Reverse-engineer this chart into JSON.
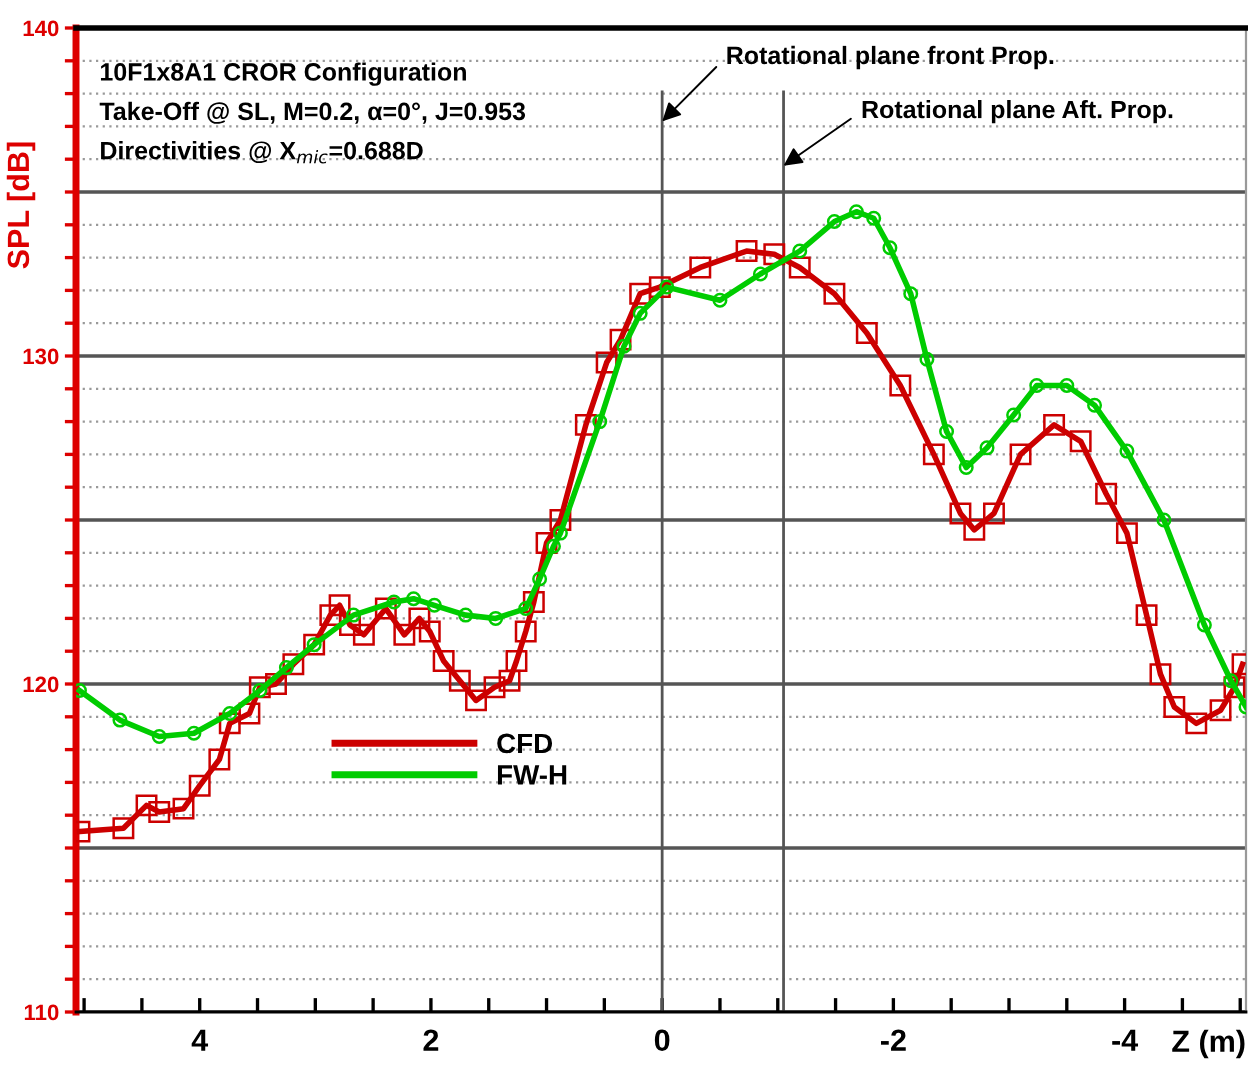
{
  "chart_data": {
    "type": "line",
    "title": "10F1x8A1 CROR Configuration",
    "subtitle": "Take-Off @ SL, M=0.2, α=0°, J=0.953",
    "annotations": [
      "Directivities @ X$_{mic}$=0.688D"
    ],
    "xlabel": "Z (m)",
    "ylabel": "SPL [dB]",
    "series": [
      {
        "name": "CFD",
        "color": "#cc0000",
        "marker": "square",
        "x": [
          5.04,
          4.66,
          4.46,
          4.35,
          4.14,
          4.0,
          3.83,
          3.74,
          3.57,
          3.48,
          3.34,
          3.19,
          3.01,
          2.87,
          2.79,
          2.7,
          2.58,
          2.39,
          2.23,
          2.1,
          2.01,
          1.89,
          1.75,
          1.61,
          1.45,
          1.32,
          1.26,
          1.18,
          1.11,
          1.0,
          0.88,
          0.66,
          0.48,
          0.36,
          0.19,
          0.02,
          -0.33,
          -0.73,
          -0.97,
          -1.19,
          -1.49,
          -1.77,
          -2.06,
          -2.35,
          -2.58,
          -2.7,
          -2.87,
          -3.1,
          -3.39,
          -3.62,
          -3.84,
          -4.02,
          -4.19,
          -4.31,
          -4.43,
          -4.62,
          -4.83,
          -4.95,
          -5.02
        ],
        "values": [
          115.5,
          115.6,
          116.3,
          116.1,
          116.2,
          116.9,
          117.7,
          118.8,
          119.1,
          119.9,
          120.0,
          120.6,
          121.2,
          122.1,
          122.4,
          121.8,
          121.5,
          122.3,
          121.5,
          122.0,
          121.6,
          120.7,
          120.1,
          119.5,
          119.9,
          120.1,
          120.7,
          121.6,
          122.5,
          124.3,
          125.0,
          127.9,
          129.8,
          130.5,
          131.9,
          132.1,
          132.7,
          133.2,
          133.1,
          132.7,
          131.9,
          130.7,
          129.1,
          127.0,
          125.2,
          124.7,
          125.2,
          127.0,
          127.9,
          127.4,
          125.8,
          124.6,
          122.1,
          120.3,
          119.3,
          118.8,
          119.2,
          119.9,
          120.6
        ]
      },
      {
        "name": "FW-H",
        "color": "#00cc00",
        "marker": "circle",
        "x": [
          5.04,
          4.69,
          4.35,
          4.05,
          3.74,
          3.48,
          3.25,
          3.01,
          2.67,
          2.32,
          2.15,
          1.97,
          1.7,
          1.44,
          1.18,
          1.06,
          0.94,
          0.88,
          0.54,
          0.33,
          0.19,
          -0.04,
          -0.5,
          -0.85,
          -1.19,
          -1.49,
          -1.68,
          -1.83,
          -1.97,
          -2.15,
          -2.29,
          -2.46,
          -2.63,
          -2.81,
          -3.04,
          -3.24,
          -3.5,
          -3.74,
          -4.02,
          -4.34,
          -4.69,
          -4.92,
          -5.05
        ],
        "values": [
          119.8,
          118.9,
          118.4,
          118.5,
          119.1,
          119.8,
          120.5,
          121.2,
          122.1,
          122.5,
          122.6,
          122.4,
          122.1,
          122.0,
          122.3,
          123.2,
          124.2,
          124.6,
          128.0,
          130.3,
          131.3,
          132.1,
          131.7,
          132.5,
          133.2,
          134.1,
          134.4,
          134.2,
          133.3,
          131.9,
          129.9,
          127.7,
          126.6,
          127.2,
          128.2,
          129.1,
          129.1,
          128.5,
          127.1,
          125.0,
          121.8,
          120.1,
          119.3
        ]
      }
    ],
    "xlim": [
      5.07,
      -5.05
    ],
    "xticks": [
      {
        "value": 5.0,
        "label": null
      },
      {
        "value": 4.5,
        "label": null
      },
      4,
      {
        "value": 3.5,
        "label": null
      },
      {
        "value": 3.0,
        "label": null
      },
      {
        "value": 2.5,
        "label": null
      },
      2,
      {
        "value": 1.5,
        "label": null
      },
      {
        "value": 1.0,
        "label": null
      },
      {
        "value": 0.5,
        "label": null
      },
      0,
      {
        "value": -0.5,
        "label": null
      },
      {
        "value": -1.0,
        "label": null
      },
      {
        "value": -1.5,
        "label": null
      },
      -2,
      {
        "value": -2.5,
        "label": null
      },
      {
        "value": -3.0,
        "label": null
      },
      {
        "value": -3.5,
        "label": null
      },
      -4,
      {
        "value": -4.5,
        "label": null
      },
      {
        "value": -5.0,
        "label": null
      }
    ],
    "ylim": [
      110,
      140
    ],
    "yticks": [
      110,
      {
        "value": 111,
        "label": null
      },
      {
        "value": 112,
        "label": null
      },
      {
        "value": 113,
        "label": null
      },
      {
        "value": 114,
        "label": null
      },
      {
        "value": 115,
        "label": null
      },
      {
        "value": 116,
        "label": null
      },
      {
        "value": 117,
        "label": null
      },
      {
        "value": 118,
        "label": null
      },
      {
        "value": 119,
        "label": null
      },
      120,
      {
        "value": 121,
        "label": null
      },
      {
        "value": 122,
        "label": null
      },
      {
        "value": 123,
        "label": null
      },
      {
        "value": 124,
        "label": null
      },
      {
        "value": 125,
        "label": null
      },
      {
        "value": 126,
        "label": null
      },
      {
        "value": 127,
        "label": null
      },
      {
        "value": 128,
        "label": null
      },
      {
        "value": 129,
        "label": null
      },
      130,
      {
        "value": 131,
        "label": null
      },
      {
        "value": 132,
        "label": null
      },
      {
        "value": 133,
        "label": null
      },
      {
        "value": 134,
        "label": null
      },
      {
        "value": 135,
        "label": null
      },
      {
        "value": 136,
        "label": null
      },
      {
        "value": 137,
        "label": null
      },
      {
        "value": 138,
        "label": null
      },
      {
        "value": 139,
        "label": null
      },
      140
    ],
    "ref_lines": [
      {
        "axis": "x",
        "value": 0,
        "color": "#555555",
        "label": "Rotational plane front Prop."
      },
      {
        "axis": "x",
        "value": -1.05,
        "color": "#555555",
        "label": "Rotational plane Aft. Prop."
      }
    ],
    "grid": "y",
    "legend": "bottom left",
    "line_style": "solid"
  }
}
